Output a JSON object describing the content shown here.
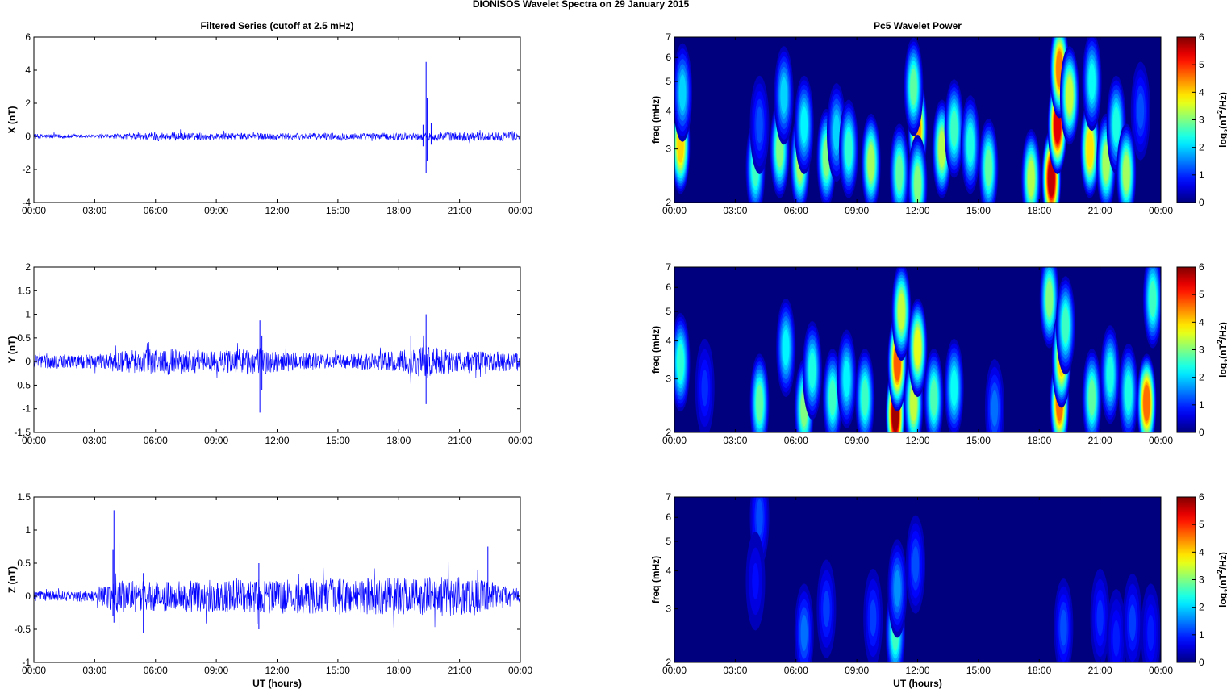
{
  "figure_title": "DIONISOS Wavelet Spectra on 29 January   2015",
  "colors": {
    "trace": "#0000ff",
    "background": "#00007f",
    "axis": "#000000"
  },
  "chart_data": [
    {
      "type": "line",
      "title": "Filtered Series (cutoff at 2.5 mHz)",
      "ylabel": "X (nT)",
      "xlabel": "",
      "xlim": [
        0,
        24
      ],
      "ylim": [
        -4,
        6
      ],
      "xticklabels": [
        "00:00",
        "03:00",
        "06:00",
        "09:00",
        "12:00",
        "15:00",
        "18:00",
        "21:00",
        "00:00"
      ],
      "yticks": [
        -4,
        -2,
        0,
        2,
        4,
        6
      ],
      "yticklabels": [
        "-4",
        "-2",
        "0",
        "2",
        "4",
        "6"
      ],
      "envelope": [
        {
          "t": 0,
          "amp": 0.15
        },
        {
          "t": 3,
          "amp": 0.1
        },
        {
          "t": 5,
          "amp": 0.2
        },
        {
          "t": 6,
          "amp": 0.28
        },
        {
          "t": 9,
          "amp": 0.2
        },
        {
          "t": 12,
          "amp": 0.2
        },
        {
          "t": 15,
          "amp": 0.2
        },
        {
          "t": 18,
          "amp": 0.22
        },
        {
          "t": 21,
          "amp": 0.28
        },
        {
          "t": 24,
          "amp": 0.25
        }
      ],
      "spikes": [
        {
          "t": 19.35,
          "max": 4.5,
          "min": -2.2
        },
        {
          "t": 19.4,
          "max": 2.3,
          "min": -1.5
        },
        {
          "t": 19.2,
          "max": 0.7,
          "min": -0.6
        },
        {
          "t": 19.6,
          "max": 0.8,
          "min": -0.5
        }
      ]
    },
    {
      "type": "line",
      "title": "",
      "ylabel": "Y (nT)",
      "xlabel": "",
      "xlim": [
        0,
        24
      ],
      "ylim": [
        -1.5,
        2
      ],
      "xticklabels": [
        "00:00",
        "03:00",
        "06:00",
        "09:00",
        "12:00",
        "15:00",
        "18:00",
        "21:00",
        "00:00"
      ],
      "yticks": [
        -1.5,
        -1,
        -0.5,
        0,
        0.5,
        1,
        1.5,
        2
      ],
      "yticklabels": [
        "-1.5",
        "-1",
        "-0.5",
        "0",
        "0.5",
        "1",
        "1.5",
        "2"
      ],
      "envelope": [
        {
          "t": 0,
          "amp": 0.15
        },
        {
          "t": 3,
          "amp": 0.15
        },
        {
          "t": 6,
          "amp": 0.3
        },
        {
          "t": 9,
          "amp": 0.22
        },
        {
          "t": 11,
          "amp": 0.3
        },
        {
          "t": 12,
          "amp": 0.22
        },
        {
          "t": 15,
          "amp": 0.15
        },
        {
          "t": 18,
          "amp": 0.22
        },
        {
          "t": 19.3,
          "amp": 0.35
        },
        {
          "t": 21,
          "amp": 0.22
        },
        {
          "t": 24,
          "amp": 0.2
        }
      ],
      "spikes": [
        {
          "t": 11.15,
          "max": 0.87,
          "min": -1.08
        },
        {
          "t": 11.25,
          "max": 0.55,
          "min": -0.6
        },
        {
          "t": 19.35,
          "max": 1.0,
          "min": -0.9
        },
        {
          "t": 18.6,
          "max": 0.55,
          "min": -0.3
        },
        {
          "t": 23.98,
          "max": 1.5,
          "min": -0.3
        }
      ]
    },
    {
      "type": "line",
      "title": "",
      "ylabel": "Z (nT)",
      "xlabel": "UT (hours)",
      "xlim": [
        0,
        24
      ],
      "ylim": [
        -1,
        1.5
      ],
      "xticklabels": [
        "00:00",
        "03:00",
        "06:00",
        "09:00",
        "12:00",
        "15:00",
        "18:00",
        "21:00",
        "00:00"
      ],
      "yticks": [
        -1,
        -0.5,
        0,
        0.5,
        1,
        1.5
      ],
      "yticklabels": [
        "-1",
        "-0.5",
        "0",
        "0.5",
        "1",
        "1.5"
      ],
      "envelope": [
        {
          "t": 0,
          "amp": 0.08
        },
        {
          "t": 3,
          "amp": 0.08
        },
        {
          "t": 4,
          "amp": 0.25
        },
        {
          "t": 6,
          "amp": 0.22
        },
        {
          "t": 9,
          "amp": 0.25
        },
        {
          "t": 12,
          "amp": 0.25
        },
        {
          "t": 15,
          "amp": 0.28
        },
        {
          "t": 18,
          "amp": 0.28
        },
        {
          "t": 21,
          "amp": 0.3
        },
        {
          "t": 23,
          "amp": 0.2
        },
        {
          "t": 24,
          "amp": 0.12
        }
      ],
      "spikes": [
        {
          "t": 3.95,
          "max": 1.3,
          "min": -0.4
        },
        {
          "t": 3.9,
          "max": 0.7,
          "min": -0.3
        },
        {
          "t": 4.2,
          "max": 0.8,
          "min": -0.5
        },
        {
          "t": 5.4,
          "max": 0.35,
          "min": -0.55
        },
        {
          "t": 22.4,
          "max": 0.75,
          "min": -0.2
        },
        {
          "t": 11.1,
          "max": 0.5,
          "min": -0.5
        }
      ]
    },
    {
      "type": "heatmap",
      "title": "Pc5 Wavelet Power",
      "ylabel": "freq (mHz)",
      "xlabel": "",
      "xlim": [
        0,
        24
      ],
      "ylim": [
        2,
        7
      ],
      "yscale": "log",
      "xticklabels": [
        "00:00",
        "03:00",
        "06:00",
        "09:00",
        "12:00",
        "15:00",
        "18:00",
        "21:00",
        "00:00"
      ],
      "yticks": [
        2,
        3,
        4,
        5,
        6,
        7
      ],
      "yticklabels": [
        "2",
        "3",
        "4",
        "5",
        "6",
        "7"
      ],
      "colorbar": {
        "label": "log2(nT^2/Hz)",
        "label_base": "log",
        "label_sub": "2",
        "label_mid": "(nT",
        "label_sup": "2",
        "label_end": "/Hz)",
        "ticks": [
          0,
          1,
          2,
          3,
          4,
          5,
          6
        ],
        "ticklabels": [
          "0",
          "1",
          "2",
          "3",
          "4",
          "5",
          "6"
        ],
        "range": [
          0,
          6
        ]
      },
      "blobs": [
        {
          "t": 0.3,
          "f": 3.1,
          "p": 4.0
        },
        {
          "t": 0.4,
          "f": 4.6,
          "p": 2.0
        },
        {
          "t": 4.0,
          "f": 2.6,
          "p": 2.6
        },
        {
          "t": 4.2,
          "f": 3.6,
          "p": 1.2
        },
        {
          "t": 5.2,
          "f": 3.0,
          "p": 3.0
        },
        {
          "t": 5.4,
          "f": 4.5,
          "p": 2.0
        },
        {
          "t": 6.2,
          "f": 2.7,
          "p": 3.2
        },
        {
          "t": 6.4,
          "f": 3.6,
          "p": 2.2
        },
        {
          "t": 7.5,
          "f": 2.8,
          "p": 3.0
        },
        {
          "t": 8.0,
          "f": 3.4,
          "p": 2.0
        },
        {
          "t": 8.6,
          "f": 3.0,
          "p": 2.5
        },
        {
          "t": 9.7,
          "f": 2.7,
          "p": 3.2
        },
        {
          "t": 11.1,
          "f": 2.5,
          "p": 2.8
        },
        {
          "t": 12.0,
          "f": 3.5,
          "p": 4.3
        },
        {
          "t": 12.0,
          "f": 2.3,
          "p": 3.0
        },
        {
          "t": 11.8,
          "f": 4.8,
          "p": 2.8
        },
        {
          "t": 13.2,
          "f": 3.0,
          "p": 3.3
        },
        {
          "t": 13.8,
          "f": 3.5,
          "p": 2.6
        },
        {
          "t": 14.6,
          "f": 3.1,
          "p": 2.4
        },
        {
          "t": 15.5,
          "f": 2.6,
          "p": 2.8
        },
        {
          "t": 17.6,
          "f": 2.4,
          "p": 3.3
        },
        {
          "t": 18.6,
          "f": 2.4,
          "p": 5.6
        },
        {
          "t": 18.9,
          "f": 3.6,
          "p": 5.4
        },
        {
          "t": 19.0,
          "f": 5.5,
          "p": 4.5
        },
        {
          "t": 19.5,
          "f": 4.5,
          "p": 3.4
        },
        {
          "t": 20.5,
          "f": 3.0,
          "p": 3.9
        },
        {
          "t": 20.6,
          "f": 5.0,
          "p": 2.3
        },
        {
          "t": 21.3,
          "f": 2.7,
          "p": 3.2
        },
        {
          "t": 21.8,
          "f": 3.6,
          "p": 2.4
        },
        {
          "t": 22.3,
          "f": 2.5,
          "p": 3.2
        },
        {
          "t": 23.0,
          "f": 4.0,
          "p": 1.2
        }
      ]
    },
    {
      "type": "heatmap",
      "title": "",
      "ylabel": "freq (mHz)",
      "xlabel": "",
      "xlim": [
        0,
        24
      ],
      "ylim": [
        2,
        7
      ],
      "yscale": "log",
      "xticklabels": [
        "00:00",
        "03:00",
        "06:00",
        "09:00",
        "12:00",
        "15:00",
        "18:00",
        "21:00",
        "00:00"
      ],
      "yticks": [
        2,
        3,
        4,
        5,
        6,
        7
      ],
      "yticklabels": [
        "2",
        "3",
        "4",
        "5",
        "6",
        "7"
      ],
      "colorbar": {
        "label": "log2(nT^2/Hz)",
        "label_base": "log",
        "label_sub": "2",
        "label_mid": "(nT",
        "label_sup": "2",
        "label_end": "/Hz)",
        "ticks": [
          0,
          1,
          2,
          3,
          4,
          5,
          6
        ],
        "ticklabels": [
          "0",
          "1",
          "2",
          "3",
          "4",
          "5",
          "6"
        ],
        "range": [
          0,
          6
        ]
      },
      "blobs": [
        {
          "t": 0.3,
          "f": 3.4,
          "p": 2.5
        },
        {
          "t": 1.5,
          "f": 2.8,
          "p": 1.0
        },
        {
          "t": 4.2,
          "f": 2.5,
          "p": 2.8
        },
        {
          "t": 5.5,
          "f": 3.8,
          "p": 2.2
        },
        {
          "t": 6.4,
          "f": 2.4,
          "p": 3.0
        },
        {
          "t": 6.8,
          "f": 3.2,
          "p": 2.4
        },
        {
          "t": 7.8,
          "f": 2.6,
          "p": 2.6
        },
        {
          "t": 8.5,
          "f": 3.0,
          "p": 2.2
        },
        {
          "t": 9.4,
          "f": 2.6,
          "p": 2.6
        },
        {
          "t": 10.9,
          "f": 2.3,
          "p": 5.8
        },
        {
          "t": 11.0,
          "f": 3.4,
          "p": 4.7
        },
        {
          "t": 11.2,
          "f": 5.0,
          "p": 3.4
        },
        {
          "t": 11.8,
          "f": 2.5,
          "p": 3.4
        },
        {
          "t": 12.0,
          "f": 3.8,
          "p": 3.6
        },
        {
          "t": 12.8,
          "f": 2.6,
          "p": 2.7
        },
        {
          "t": 13.8,
          "f": 2.8,
          "p": 2.3
        },
        {
          "t": 15.8,
          "f": 2.4,
          "p": 1.4
        },
        {
          "t": 18.5,
          "f": 5.5,
          "p": 3.0
        },
        {
          "t": 19.0,
          "f": 2.5,
          "p": 4.6
        },
        {
          "t": 19.1,
          "f": 3.5,
          "p": 4.0
        },
        {
          "t": 19.3,
          "f": 4.5,
          "p": 2.6
        },
        {
          "t": 20.6,
          "f": 2.6,
          "p": 2.8
        },
        {
          "t": 21.5,
          "f": 3.1,
          "p": 2.4
        },
        {
          "t": 22.4,
          "f": 2.7,
          "p": 2.4
        },
        {
          "t": 23.3,
          "f": 2.5,
          "p": 4.6
        },
        {
          "t": 23.6,
          "f": 5.5,
          "p": 2.6
        }
      ]
    },
    {
      "type": "heatmap",
      "title": "",
      "ylabel": "freq (mHz)",
      "xlabel": "UT (hours)",
      "xlim": [
        0,
        24
      ],
      "ylim": [
        2,
        7
      ],
      "yscale": "log",
      "xticklabels": [
        "00:00",
        "03:00",
        "06:00",
        "09:00",
        "12:00",
        "15:00",
        "18:00",
        "21:00",
        "00:00"
      ],
      "yticks": [
        2,
        3,
        4,
        5,
        6,
        7
      ],
      "yticklabels": [
        "2",
        "3",
        "4",
        "5",
        "6",
        "7"
      ],
      "colorbar": {
        "label": "log2(nT^2/Hz)",
        "label_base": "log",
        "label_sub": "2",
        "label_mid": "(nT",
        "label_sup": "2",
        "label_end": "/Hz)",
        "ticks": [
          0,
          1,
          2,
          3,
          4,
          5,
          6
        ],
        "ticklabels": [
          "0",
          "1",
          "2",
          "3",
          "4",
          "5",
          "6"
        ],
        "range": [
          0,
          6
        ]
      },
      "blobs": [
        {
          "t": 4.2,
          "f": 6.0,
          "p": 1.2
        },
        {
          "t": 4.0,
          "f": 3.7,
          "p": 0.8
        },
        {
          "t": 6.4,
          "f": 2.5,
          "p": 1.4
        },
        {
          "t": 7.5,
          "f": 3.0,
          "p": 1.1
        },
        {
          "t": 9.8,
          "f": 2.8,
          "p": 1.1
        },
        {
          "t": 10.9,
          "f": 2.5,
          "p": 2.6
        },
        {
          "t": 11.0,
          "f": 3.5,
          "p": 1.6
        },
        {
          "t": 11.9,
          "f": 4.2,
          "p": 1.2
        },
        {
          "t": 19.2,
          "f": 2.6,
          "p": 1.2
        },
        {
          "t": 21.0,
          "f": 2.8,
          "p": 1.0
        },
        {
          "t": 21.8,
          "f": 2.4,
          "p": 0.9
        },
        {
          "t": 22.6,
          "f": 2.7,
          "p": 1.1
        },
        {
          "t": 23.5,
          "f": 2.5,
          "p": 0.9
        }
      ]
    }
  ]
}
